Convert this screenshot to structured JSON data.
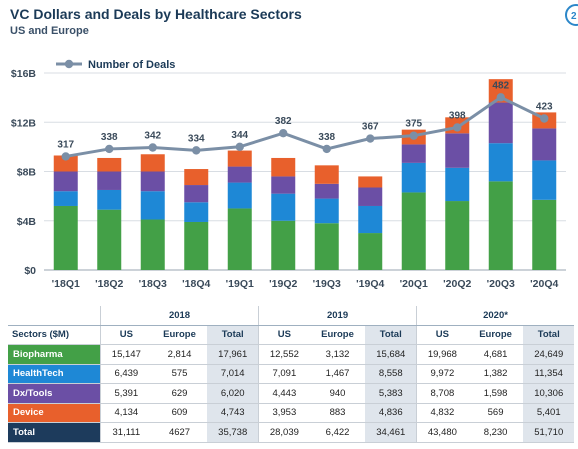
{
  "header": {
    "title": "VC Dollars and Deals by Healthcare Sectors",
    "subtitle": "US and Europe",
    "page_marker": "2"
  },
  "colors": {
    "biopharma": "#43a047",
    "healthtech": "#1e88d6",
    "dx_tools": "#6b4fa5",
    "device": "#e8602c",
    "total": "#1d3b5c",
    "deals_line": "#7b8fa6"
  },
  "chart_data": {
    "type": "bar",
    "stacked": true,
    "categories": [
      "'18Q1",
      "'18Q2",
      "'18Q3",
      "'18Q4",
      "'19Q1",
      "'19Q2",
      "'19Q3",
      "'19Q4",
      "'20Q1",
      "'20Q2",
      "'20Q3",
      "'20Q4"
    ],
    "ylim": [
      0,
      16
    ],
    "yticks": [
      {
        "value": 0,
        "label": "$0"
      },
      {
        "value": 4,
        "label": "$4B"
      },
      {
        "value": 8,
        "label": "$8B"
      },
      {
        "value": 12,
        "label": "$12B"
      },
      {
        "value": 16,
        "label": "$16B"
      }
    ],
    "series": [
      {
        "key": "biopharma",
        "values": [
          5.2,
          4.9,
          4.1,
          3.9,
          5.0,
          4.0,
          3.8,
          3.0,
          6.3,
          5.6,
          7.2,
          5.7
        ]
      },
      {
        "key": "healthtech",
        "values": [
          1.2,
          1.6,
          2.3,
          1.6,
          2.1,
          2.2,
          2.0,
          2.2,
          2.4,
          2.7,
          3.1,
          3.2
        ]
      },
      {
        "key": "dx_tools",
        "values": [
          1.6,
          1.5,
          1.6,
          1.4,
          1.3,
          1.4,
          1.2,
          1.5,
          1.5,
          2.8,
          3.3,
          2.6
        ]
      },
      {
        "key": "device",
        "values": [
          1.3,
          1.1,
          1.4,
          1.3,
          1.3,
          1.5,
          1.5,
          0.9,
          1.2,
          1.3,
          1.9,
          1.3
        ]
      }
    ],
    "line": {
      "name": "Number of Deals",
      "values": [
        317,
        338,
        342,
        334,
        344,
        382,
        338,
        367,
        375,
        398,
        482,
        423
      ],
      "ylim": [
        0,
        550
      ]
    },
    "legend_position": "top-left"
  },
  "table": {
    "corner_label": "Sectors ($M)",
    "years": [
      "2018",
      "2019",
      "2020*"
    ],
    "sub_headers": [
      "US",
      "Europe",
      "Total"
    ],
    "rows": [
      {
        "label": "Biopharma",
        "color_key": "biopharma",
        "cells": [
          "15,147",
          "2,814",
          "17,961",
          "12,552",
          "3,132",
          "15,684",
          "19,968",
          "4,681",
          "24,649"
        ]
      },
      {
        "label": "HealthTech",
        "color_key": "healthtech",
        "cells": [
          "6,439",
          "575",
          "7,014",
          "7,091",
          "1,467",
          "8,558",
          "9,972",
          "1,382",
          "11,354"
        ]
      },
      {
        "label": "Dx/Tools",
        "color_key": "dx_tools",
        "cells": [
          "5,391",
          "629",
          "6,020",
          "4,443",
          "940",
          "5,383",
          "8,708",
          "1,598",
          "10,306"
        ]
      },
      {
        "label": "Device",
        "color_key": "device",
        "cells": [
          "4,134",
          "609",
          "4,743",
          "3,953",
          "883",
          "4,836",
          "4,832",
          "569",
          "5,401"
        ]
      },
      {
        "label": "Total",
        "color_key": "total",
        "cells": [
          "31,111",
          "4627",
          "35,738",
          "28,039",
          "6,422",
          "34,461",
          "43,480",
          "8,230",
          "51,710"
        ]
      }
    ]
  }
}
